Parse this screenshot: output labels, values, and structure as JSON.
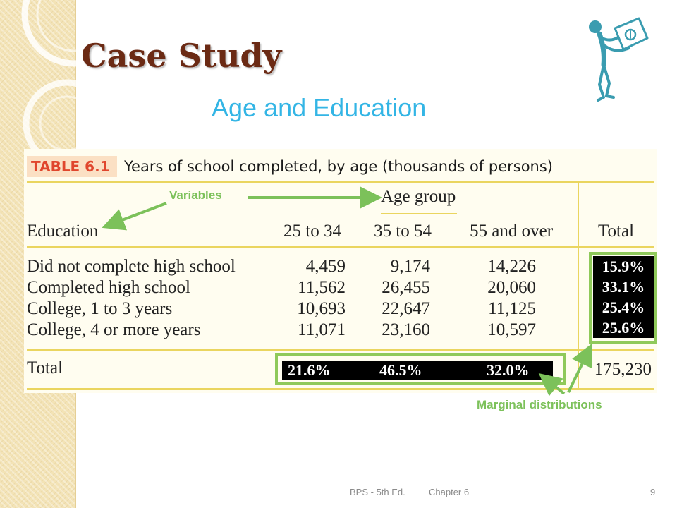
{
  "slide": {
    "title": "Case Study",
    "subtitle": "Age and Education"
  },
  "table": {
    "label": "TABLE 6.1",
    "caption": "Years of school completed, by age (thousands of persons)",
    "group_header": "Age group",
    "columns": [
      "Education",
      "25 to 34",
      "35 to 54",
      "55 and over",
      "Total"
    ],
    "rows": [
      {
        "label": "Did not complete high school",
        "values": [
          "4,459",
          "9,174",
          "14,226"
        ]
      },
      {
        "label": "Completed high school",
        "values": [
          "11,562",
          "26,455",
          "20,060"
        ]
      },
      {
        "label": "College, 1 to 3 years",
        "values": [
          "10,693",
          "22,647",
          "11,125"
        ]
      },
      {
        "label": "College, 4 or more years",
        "values": [
          "11,071",
          "23,160",
          "10,597"
        ]
      }
    ],
    "total_row": {
      "label": "Total",
      "grand_total": "175,230"
    },
    "column_percentages": [
      "21.6%",
      "46.5%",
      "32.0%"
    ],
    "row_percentages": [
      "15.9%",
      "33.1%",
      "25.4%",
      "25.6%"
    ]
  },
  "annotations": {
    "variables": "Variables",
    "marginal": "Marginal distributions"
  },
  "footer": {
    "source": "BPS - 5th Ed.",
    "chapter": "Chapter 6",
    "page": "9"
  },
  "colors": {
    "title": "#6b2a14",
    "subtitle": "#33b5e5",
    "annotation_green": "#7cc15a",
    "table_rule": "#ead55f",
    "figure_teal": "#3a9cb0"
  },
  "icons": {
    "figure": "stick-figure-holding-sign-icon"
  }
}
